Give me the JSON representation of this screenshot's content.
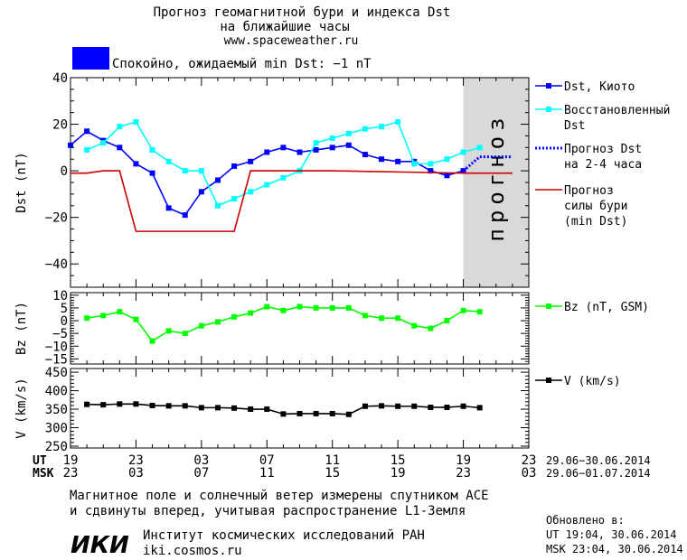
{
  "header": {
    "title_line1": "Прогноз геомагнитной бури и индекса Dst",
    "title_line2": "на ближайшие часы",
    "url": "www.spaceweather.ru",
    "status": "Спокойно, ожидаемый min Dst: −1 nT",
    "status_color": "#0000ff"
  },
  "forecast_band_label": "прогноз",
  "footer": {
    "note_line1": "Магнитное поле и солнечный ветер измерены спутником ACE",
    "note_line2": "и сдвинуты вперед, учитывая распространение L1-Земля",
    "logo": "ИКИ",
    "institute": "Институт космических исследований РАН",
    "site": "iki.cosmos.ru",
    "updated_label": "Обновлено в:",
    "updated_ut": "UT  19:04, 30.06.2014",
    "updated_msk": "MSK 23:04, 30.06.2014"
  },
  "time_axis": {
    "ut_label": "UT",
    "msk_label": "MSK",
    "ut_ticks": [
      "19",
      "23",
      "03",
      "07",
      "11",
      "15",
      "19",
      "23"
    ],
    "msk_ticks": [
      "23",
      "03",
      "07",
      "11",
      "15",
      "19",
      "23",
      "03"
    ],
    "ut_range": "29.06−30.06.2014",
    "msk_range": "29.06−01.07.2014"
  },
  "chart_data": [
    {
      "type": "line",
      "ylabel": "Dst (nT)",
      "ylim": [
        -50,
        40
      ],
      "yticks": [
        -40,
        -20,
        0,
        20,
        40
      ],
      "xlim": [
        0,
        28
      ],
      "forecast_region": [
        24,
        28
      ],
      "series": [
        {
          "name": "Dst, Киото",
          "color": "#0000ff",
          "marker": "square",
          "x": [
            0,
            1,
            2,
            3,
            4,
            5,
            6,
            7,
            8,
            9,
            10,
            11,
            12,
            13,
            14,
            15,
            16,
            17,
            18,
            19,
            20,
            21,
            22,
            23,
            24
          ],
          "y": [
            11,
            17,
            13,
            10,
            3,
            -1,
            -16,
            -19,
            -9,
            -4,
            2,
            4,
            8,
            10,
            8,
            9,
            10,
            11,
            7,
            5,
            4,
            4,
            0,
            -2,
            0
          ]
        },
        {
          "name": "Восстановленный Dst",
          "color": "#00ffff",
          "marker": "square",
          "x": [
            1,
            2,
            3,
            4,
            5,
            6,
            7,
            8,
            9,
            10,
            11,
            12,
            13,
            14,
            15,
            16,
            17,
            18,
            19,
            20,
            21,
            22,
            23,
            24,
            25
          ],
          "y": [
            9,
            12,
            19,
            21,
            9,
            4,
            0,
            0,
            -15,
            -12,
            -9,
            -6,
            -3,
            0,
            12,
            14,
            16,
            18,
            19,
            21,
            3,
            3,
            5,
            8,
            10
          ]
        },
        {
          "name": "Прогноз Dst на 2-4 часа",
          "color": "#0000ff",
          "style": "dotted",
          "x": [
            24,
            25,
            26,
            27
          ],
          "y": [
            0,
            6,
            6,
            6
          ]
        },
        {
          "name": "Прогноз силы бури (min Dst)",
          "color": "#cc0000",
          "x": [
            0,
            1,
            2,
            3,
            4,
            7,
            8,
            9,
            10,
            11,
            16,
            24,
            25,
            26,
            27
          ],
          "y": [
            -1,
            -1,
            0,
            0,
            -26,
            -26,
            -26,
            -26,
            -26,
            0,
            0,
            -1,
            -1,
            -1,
            -1
          ]
        }
      ],
      "legend_placement": "right"
    },
    {
      "type": "line",
      "ylabel": "Bz (nT)",
      "ylim": [
        -17,
        11
      ],
      "yticks": [
        10,
        5,
        0,
        -5,
        -10,
        -15
      ],
      "xlim": [
        0,
        28
      ],
      "series": [
        {
          "name": "Bz (nT, GSM)",
          "color": "#00ff00",
          "marker": "square",
          "x": [
            1,
            2,
            3,
            4,
            5,
            6,
            7,
            8,
            9,
            10,
            11,
            12,
            13,
            14,
            15,
            16,
            17,
            18,
            19,
            20,
            21,
            22,
            23,
            24,
            25
          ],
          "y": [
            1,
            2,
            3.5,
            0.5,
            -8,
            -4,
            -5,
            -2,
            -0.5,
            1.5,
            3,
            5.5,
            4,
            5.5,
            5,
            5,
            5,
            2,
            1,
            1,
            -2,
            -3,
            0,
            4,
            3.5
          ]
        }
      ],
      "legend_placement": "right"
    },
    {
      "type": "line",
      "ylabel": "V (km/s)",
      "ylim": [
        245,
        460
      ],
      "yticks": [
        450,
        400,
        350,
        300,
        250
      ],
      "xlim": [
        0,
        28
      ],
      "series": [
        {
          "name": "V (km/s)",
          "color": "#000000",
          "marker": "square",
          "x": [
            1,
            2,
            3,
            4,
            5,
            6,
            7,
            8,
            9,
            10,
            11,
            12,
            13,
            14,
            15,
            16,
            17,
            18,
            19,
            20,
            21,
            22,
            23,
            24,
            25
          ],
          "y": [
            363,
            362,
            364,
            364,
            360,
            359,
            359,
            354,
            354,
            353,
            350,
            350,
            337,
            338,
            338,
            338,
            336,
            358,
            359,
            358,
            358,
            355,
            355,
            358,
            354
          ]
        }
      ],
      "legend_placement": "right"
    }
  ]
}
